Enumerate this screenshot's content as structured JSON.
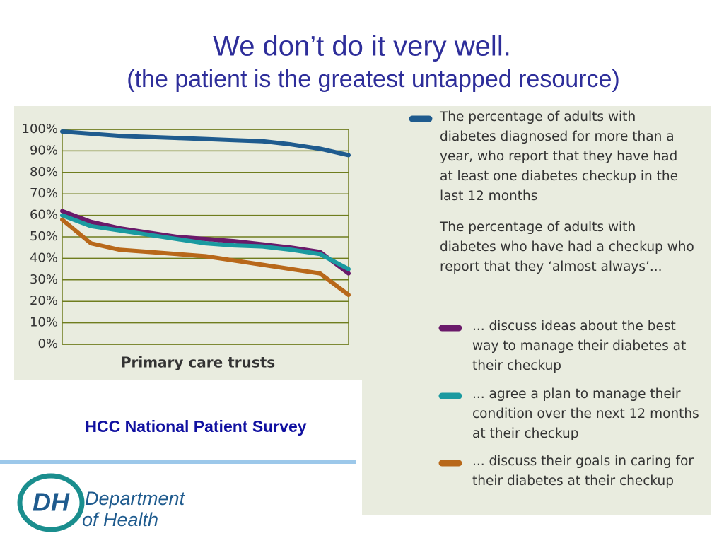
{
  "title": "We don’t do it very well.",
  "subtitle": "(the patient is the greatest untapped resource)",
  "source": "HCC National Patient Survey",
  "logo": {
    "initials": "DH",
    "line1": "Department",
    "line2": "of Health"
  },
  "chart_data": {
    "type": "line",
    "xlabel": "Primary care trusts",
    "categories": [
      null,
      null,
      null,
      null,
      null,
      null,
      null,
      null,
      null,
      null,
      null
    ],
    "legend_heading": "The percentage of adults with diabetes who have had a checkup who report that they ‘almost always’...",
    "series": [
      {
        "name": "The percentage of adults with diabetes diagnosed for more than a year, who report that they have had at least one diabetes checkup in the last 12 months",
        "color": "#1f5b8e",
        "values": [
          99,
          98,
          97,
          96.5,
          96,
          95.5,
          95,
          94.5,
          93,
          91,
          88
        ]
      },
      {
        "name": "... discuss ideas about the best way to manage their diabetes at their checkup",
        "color": "#6a1a6a",
        "values": [
          62,
          57,
          54,
          52,
          50,
          49,
          48,
          46.5,
          45,
          43,
          33
        ]
      },
      {
        "name": "... agree a plan to manage their condition over the next 12 months at their checkup",
        "color": "#1a9aa0",
        "values": [
          60,
          55,
          53,
          51,
          49,
          47,
          46,
          45.5,
          44,
          42,
          35
        ]
      },
      {
        "name": "... discuss their goals in caring for their diabetes at their checkup",
        "color": "#b8681a",
        "values": [
          58,
          47,
          44,
          43,
          42,
          41,
          39,
          37,
          35,
          33,
          23
        ]
      }
    ],
    "ylim": [
      0,
      100
    ],
    "yticks": [
      {
        "value": 0,
        "label": "0%"
      },
      {
        "value": 10,
        "label": "10%"
      },
      {
        "value": 20,
        "label": "20%"
      },
      {
        "value": 30,
        "label": "30%"
      },
      {
        "value": 40,
        "label": "40%"
      },
      {
        "value": 50,
        "label": "50%"
      },
      {
        "value": 60,
        "label": "60%"
      },
      {
        "value": 70,
        "label": "70%"
      },
      {
        "value": 80,
        "label": "80%"
      },
      {
        "value": 90,
        "label": "90%"
      },
      {
        "value": 100,
        "label": "100%"
      }
    ],
    "grid": true
  }
}
